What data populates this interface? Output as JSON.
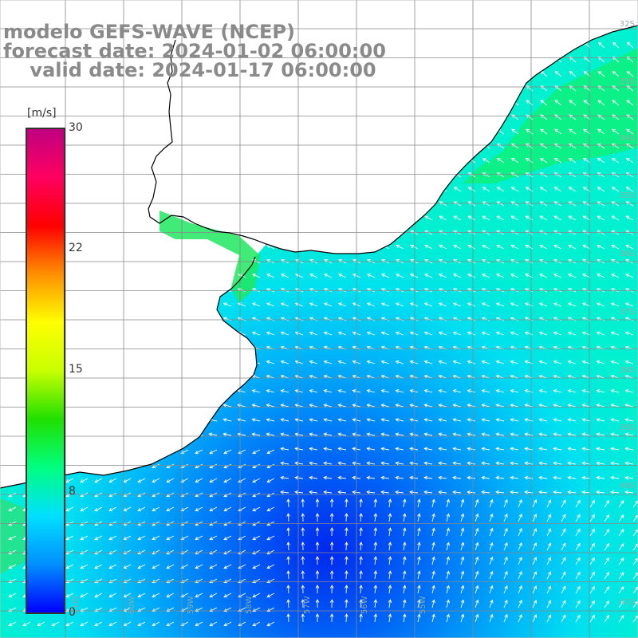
{
  "title": {
    "line1": "modelo GEFS-WAVE (NCEP)",
    "line2": "forecast date: 2024-01-02 06:00:00",
    "line3": "    valid date: 2024-01-17 06:00:00"
  },
  "colorbar": {
    "unit": "[m/s]",
    "ticks": [
      "30",
      "22",
      "15",
      "8",
      "0"
    ],
    "tick_values": [
      30,
      22,
      15,
      8,
      0
    ],
    "range": [
      0,
      30
    ],
    "colors": [
      "#0000ff",
      "#0090ff",
      "#00e0ff",
      "#00ff80",
      "#20e000",
      "#c8ff00",
      "#ffff00",
      "#ff9000",
      "#ff0000",
      "#ff0060",
      "#c00080"
    ]
  },
  "lat_labels": [
    "32S",
    "33S",
    "34S",
    "35S",
    "36S",
    "37S",
    "38S",
    "39S",
    "40S",
    "41S"
  ],
  "lon_labels": [
    "61W",
    "60W",
    "59W",
    "58W",
    "57W",
    "56W",
    "55W"
  ],
  "colors": {
    "land": "#ffffff",
    "grid": "#888888",
    "coast": "#000000",
    "arrow": "#ffffff",
    "title": "#8a8a8a"
  }
}
